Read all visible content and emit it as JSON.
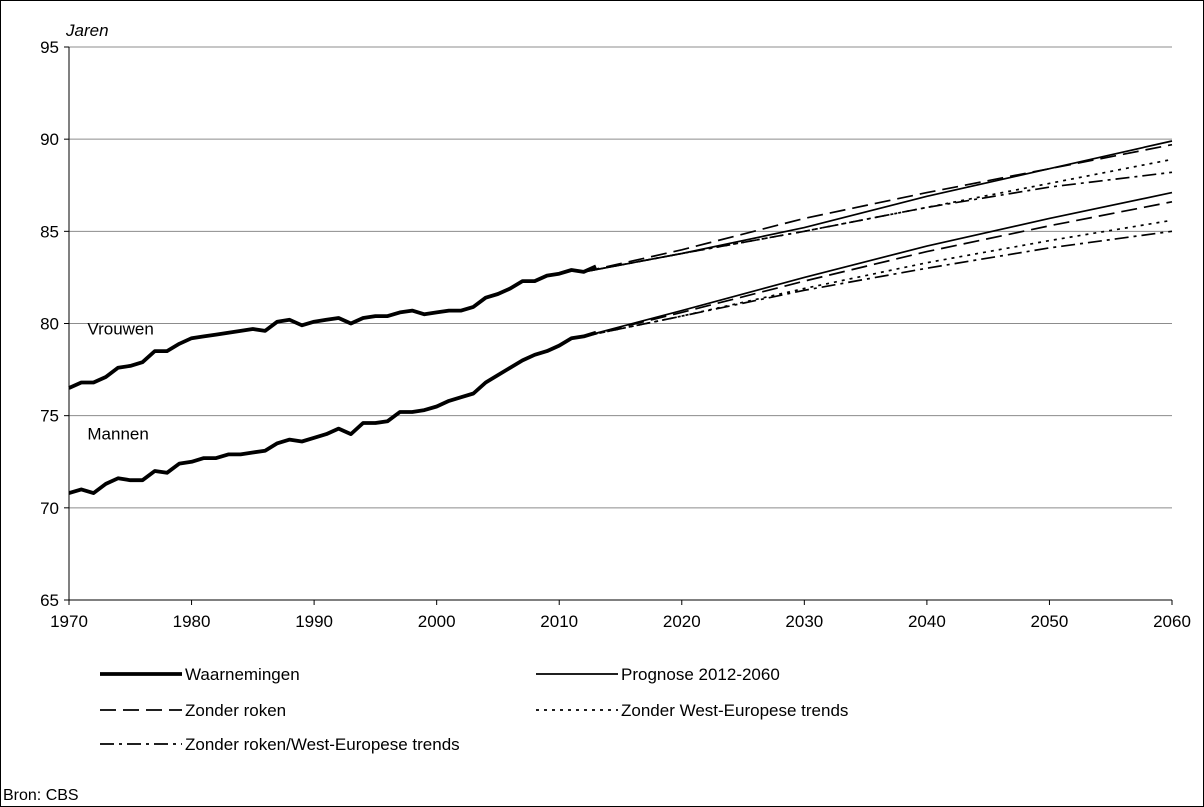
{
  "chart_data": {
    "type": "line",
    "ylabel": "Jaren",
    "source": "Bron: CBS",
    "xlim": [
      1970,
      2060
    ],
    "ylim": [
      65,
      95
    ],
    "xticks": [
      "1970",
      "1980",
      "1990",
      "2000",
      "2010",
      "2020",
      "2030",
      "2040",
      "2050",
      "2060"
    ],
    "yticks": [
      "65",
      "70",
      "75",
      "80",
      "85",
      "90",
      "95"
    ],
    "grid": "horizontal",
    "group_labels": [
      {
        "text": "Vrouwen",
        "x": 1971.5,
        "y": 79.4
      },
      {
        "text": "Mannen",
        "x": 1971.5,
        "y": 73.7
      }
    ],
    "legend": [
      {
        "label": "Waarnemingen",
        "style": "observed"
      },
      {
        "label": "Prognose 2012-2060",
        "style": "forecast"
      },
      {
        "label": "Zonder roken",
        "style": "dashed"
      },
      {
        "label": "Zonder West-Europese trends",
        "style": "dotted"
      },
      {
        "label": "Zonder roken/West-Europese trends",
        "style": "dashdot"
      }
    ],
    "series": [
      {
        "name": "Waarnemingen",
        "group": "Vrouwen",
        "style": "observed",
        "x": [
          1970,
          1971,
          1972,
          1973,
          1974,
          1975,
          1976,
          1977,
          1978,
          1979,
          1980,
          1981,
          1982,
          1983,
          1984,
          1985,
          1986,
          1987,
          1988,
          1989,
          1990,
          1991,
          1992,
          1993,
          1994,
          1995,
          1996,
          1997,
          1998,
          1999,
          2000,
          2001,
          2002,
          2003,
          2004,
          2005,
          2006,
          2007,
          2008,
          2009,
          2010,
          2011,
          2012,
          2013
        ],
        "y": [
          76.5,
          76.8,
          76.8,
          77.1,
          77.6,
          77.7,
          77.9,
          78.5,
          78.5,
          78.9,
          79.2,
          79.3,
          79.4,
          79.5,
          79.6,
          79.7,
          79.6,
          80.1,
          80.2,
          79.9,
          80.1,
          80.2,
          80.3,
          80.0,
          80.3,
          80.4,
          80.4,
          80.6,
          80.7,
          80.5,
          80.6,
          80.7,
          80.7,
          80.9,
          81.4,
          81.6,
          81.9,
          82.3,
          82.3,
          82.6,
          82.7,
          82.9,
          82.8,
          83.1
        ]
      },
      {
        "name": "Waarnemingen",
        "group": "Mannen",
        "style": "observed",
        "x": [
          1970,
          1971,
          1972,
          1973,
          1974,
          1975,
          1976,
          1977,
          1978,
          1979,
          1980,
          1981,
          1982,
          1983,
          1984,
          1985,
          1986,
          1987,
          1988,
          1989,
          1990,
          1991,
          1992,
          1993,
          1994,
          1995,
          1996,
          1997,
          1998,
          1999,
          2000,
          2001,
          2002,
          2003,
          2004,
          2005,
          2006,
          2007,
          2008,
          2009,
          2010,
          2011,
          2012,
          2013
        ],
        "y": [
          70.8,
          71.0,
          70.8,
          71.3,
          71.6,
          71.5,
          71.5,
          72.0,
          71.9,
          72.4,
          72.5,
          72.7,
          72.7,
          72.9,
          72.9,
          73.0,
          73.1,
          73.5,
          73.7,
          73.6,
          73.8,
          74.0,
          74.3,
          74.0,
          74.6,
          74.6,
          74.7,
          75.2,
          75.2,
          75.3,
          75.5,
          75.8,
          76.0,
          76.2,
          76.8,
          77.2,
          77.6,
          78.0,
          78.3,
          78.5,
          78.8,
          79.2,
          79.3,
          79.5
        ]
      },
      {
        "name": "Prognose 2012-2060",
        "group": "Vrouwen",
        "style": "forecast",
        "x": [
          2012,
          2020,
          2030,
          2040,
          2050,
          2060
        ],
        "y": [
          82.8,
          83.8,
          85.2,
          86.9,
          88.4,
          89.9
        ]
      },
      {
        "name": "Prognose 2012-2060",
        "group": "Mannen",
        "style": "forecast",
        "x": [
          2012,
          2020,
          2030,
          2040,
          2050,
          2060
        ],
        "y": [
          79.3,
          80.7,
          82.5,
          84.2,
          85.7,
          87.1
        ]
      },
      {
        "name": "Zonder roken",
        "group": "Vrouwen",
        "style": "dashed",
        "x": [
          2012,
          2020,
          2030,
          2040,
          2050,
          2060
        ],
        "y": [
          82.8,
          84.0,
          85.7,
          87.1,
          88.4,
          89.7
        ]
      },
      {
        "name": "Zonder roken",
        "group": "Mannen",
        "style": "dashed",
        "x": [
          2012,
          2020,
          2030,
          2040,
          2050,
          2060
        ],
        "y": [
          79.3,
          80.6,
          82.3,
          83.9,
          85.3,
          86.6
        ]
      },
      {
        "name": "Zonder West-Europese trends",
        "group": "Vrouwen",
        "style": "dotted",
        "x": [
          2012,
          2020,
          2030,
          2040,
          2050,
          2060
        ],
        "y": [
          82.8,
          83.8,
          85.0,
          86.3,
          87.6,
          88.9
        ]
      },
      {
        "name": "Zonder West-Europese trends",
        "group": "Mannen",
        "style": "dotted",
        "x": [
          2012,
          2020,
          2030,
          2040,
          2050,
          2060
        ],
        "y": [
          79.3,
          80.4,
          81.9,
          83.3,
          84.5,
          85.6
        ]
      },
      {
        "name": "Zonder roken/West-Europese trends",
        "group": "Vrouwen",
        "style": "dashdot",
        "x": [
          2012,
          2020,
          2030,
          2040,
          2050,
          2060
        ],
        "y": [
          82.8,
          83.8,
          85.0,
          86.3,
          87.4,
          88.2
        ]
      },
      {
        "name": "Zonder roken/West-Europese trends",
        "group": "Mannen",
        "style": "dashdot",
        "x": [
          2012,
          2020,
          2030,
          2040,
          2050,
          2060
        ],
        "y": [
          79.3,
          80.4,
          81.8,
          83.0,
          84.1,
          85.0
        ]
      }
    ]
  }
}
